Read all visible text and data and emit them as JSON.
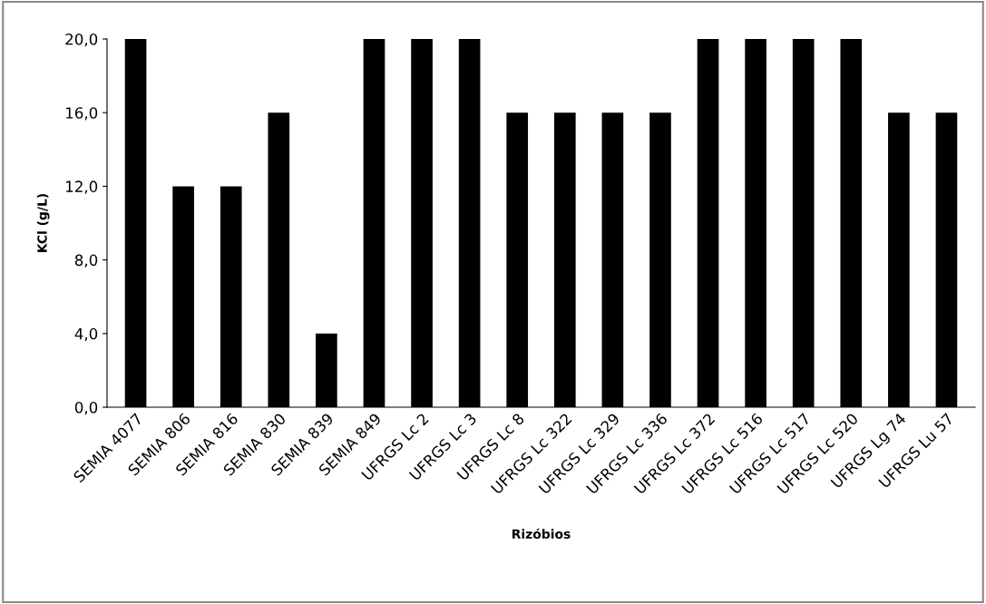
{
  "chart_data": {
    "type": "bar",
    "xlabel": "Rizóbios",
    "ylabel": "KCl (g/L)",
    "categories": [
      "SEMIA 4077",
      "SEMIA 806",
      "SEMIA 816",
      "SEMIA 830",
      "SEMIA 839",
      "SEMIA 849",
      "UFRGS Lc 2",
      "UFRGS Lc 3",
      "UFRGS Lc 8",
      "UFRGS Lc 322",
      "UFRGS Lc 329",
      "UFRGS Lc 336",
      "UFRGS Lc 372",
      "UFRGS Lc 516",
      "UFRGS Lc 517",
      "UFRGS Lc 520",
      "UFRGS Lg 74",
      "UFRGS Lu 57"
    ],
    "values": [
      20,
      12,
      12,
      16,
      4,
      20,
      20,
      20,
      16,
      16,
      16,
      16,
      20,
      20,
      20,
      20,
      16,
      16
    ],
    "color": "#000000",
    "ylim": [
      0,
      20
    ],
    "yticks": [
      {
        "value": 0,
        "label": "0,0"
      },
      {
        "value": 4,
        "label": "4,0"
      },
      {
        "value": 8,
        "label": "8,0"
      },
      {
        "value": 12,
        "label": "12,0"
      },
      {
        "value": 16,
        "label": "16,0"
      },
      {
        "value": 20,
        "label": "20,0"
      }
    ],
    "grid": false,
    "legend": false
  }
}
